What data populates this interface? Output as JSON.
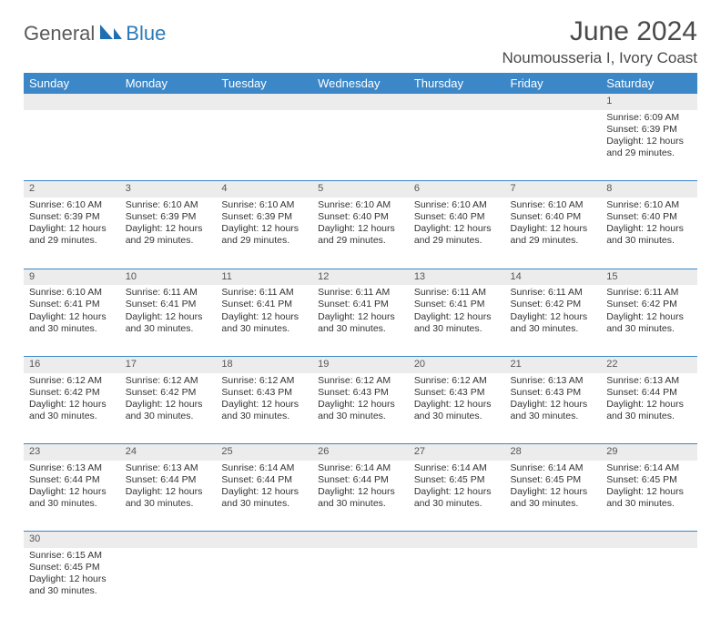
{
  "logo": {
    "word1": "General",
    "word2": "Blue"
  },
  "title": "June 2024",
  "location": "Noumousseria I, Ivory Coast",
  "weekdays": [
    "Sunday",
    "Monday",
    "Tuesday",
    "Wednesday",
    "Thursday",
    "Friday",
    "Saturday"
  ],
  "colors": {
    "header_bg": "#3b87c8",
    "rule": "#3b87c8",
    "daynum_bg": "#ececec"
  },
  "weeks": [
    [
      null,
      null,
      null,
      null,
      null,
      null,
      {
        "d": "1",
        "sr": "Sunrise: 6:09 AM",
        "ss": "Sunset: 6:39 PM",
        "dl1": "Daylight: 12 hours",
        "dl2": "and 29 minutes."
      }
    ],
    [
      {
        "d": "2",
        "sr": "Sunrise: 6:10 AM",
        "ss": "Sunset: 6:39 PM",
        "dl1": "Daylight: 12 hours",
        "dl2": "and 29 minutes."
      },
      {
        "d": "3",
        "sr": "Sunrise: 6:10 AM",
        "ss": "Sunset: 6:39 PM",
        "dl1": "Daylight: 12 hours",
        "dl2": "and 29 minutes."
      },
      {
        "d": "4",
        "sr": "Sunrise: 6:10 AM",
        "ss": "Sunset: 6:39 PM",
        "dl1": "Daylight: 12 hours",
        "dl2": "and 29 minutes."
      },
      {
        "d": "5",
        "sr": "Sunrise: 6:10 AM",
        "ss": "Sunset: 6:40 PM",
        "dl1": "Daylight: 12 hours",
        "dl2": "and 29 minutes."
      },
      {
        "d": "6",
        "sr": "Sunrise: 6:10 AM",
        "ss": "Sunset: 6:40 PM",
        "dl1": "Daylight: 12 hours",
        "dl2": "and 29 minutes."
      },
      {
        "d": "7",
        "sr": "Sunrise: 6:10 AM",
        "ss": "Sunset: 6:40 PM",
        "dl1": "Daylight: 12 hours",
        "dl2": "and 29 minutes."
      },
      {
        "d": "8",
        "sr": "Sunrise: 6:10 AM",
        "ss": "Sunset: 6:40 PM",
        "dl1": "Daylight: 12 hours",
        "dl2": "and 30 minutes."
      }
    ],
    [
      {
        "d": "9",
        "sr": "Sunrise: 6:10 AM",
        "ss": "Sunset: 6:41 PM",
        "dl1": "Daylight: 12 hours",
        "dl2": "and 30 minutes."
      },
      {
        "d": "10",
        "sr": "Sunrise: 6:11 AM",
        "ss": "Sunset: 6:41 PM",
        "dl1": "Daylight: 12 hours",
        "dl2": "and 30 minutes."
      },
      {
        "d": "11",
        "sr": "Sunrise: 6:11 AM",
        "ss": "Sunset: 6:41 PM",
        "dl1": "Daylight: 12 hours",
        "dl2": "and 30 minutes."
      },
      {
        "d": "12",
        "sr": "Sunrise: 6:11 AM",
        "ss": "Sunset: 6:41 PM",
        "dl1": "Daylight: 12 hours",
        "dl2": "and 30 minutes."
      },
      {
        "d": "13",
        "sr": "Sunrise: 6:11 AM",
        "ss": "Sunset: 6:41 PM",
        "dl1": "Daylight: 12 hours",
        "dl2": "and 30 minutes."
      },
      {
        "d": "14",
        "sr": "Sunrise: 6:11 AM",
        "ss": "Sunset: 6:42 PM",
        "dl1": "Daylight: 12 hours",
        "dl2": "and 30 minutes."
      },
      {
        "d": "15",
        "sr": "Sunrise: 6:11 AM",
        "ss": "Sunset: 6:42 PM",
        "dl1": "Daylight: 12 hours",
        "dl2": "and 30 minutes."
      }
    ],
    [
      {
        "d": "16",
        "sr": "Sunrise: 6:12 AM",
        "ss": "Sunset: 6:42 PM",
        "dl1": "Daylight: 12 hours",
        "dl2": "and 30 minutes."
      },
      {
        "d": "17",
        "sr": "Sunrise: 6:12 AM",
        "ss": "Sunset: 6:42 PM",
        "dl1": "Daylight: 12 hours",
        "dl2": "and 30 minutes."
      },
      {
        "d": "18",
        "sr": "Sunrise: 6:12 AM",
        "ss": "Sunset: 6:43 PM",
        "dl1": "Daylight: 12 hours",
        "dl2": "and 30 minutes."
      },
      {
        "d": "19",
        "sr": "Sunrise: 6:12 AM",
        "ss": "Sunset: 6:43 PM",
        "dl1": "Daylight: 12 hours",
        "dl2": "and 30 minutes."
      },
      {
        "d": "20",
        "sr": "Sunrise: 6:12 AM",
        "ss": "Sunset: 6:43 PM",
        "dl1": "Daylight: 12 hours",
        "dl2": "and 30 minutes."
      },
      {
        "d": "21",
        "sr": "Sunrise: 6:13 AM",
        "ss": "Sunset: 6:43 PM",
        "dl1": "Daylight: 12 hours",
        "dl2": "and 30 minutes."
      },
      {
        "d": "22",
        "sr": "Sunrise: 6:13 AM",
        "ss": "Sunset: 6:44 PM",
        "dl1": "Daylight: 12 hours",
        "dl2": "and 30 minutes."
      }
    ],
    [
      {
        "d": "23",
        "sr": "Sunrise: 6:13 AM",
        "ss": "Sunset: 6:44 PM",
        "dl1": "Daylight: 12 hours",
        "dl2": "and 30 minutes."
      },
      {
        "d": "24",
        "sr": "Sunrise: 6:13 AM",
        "ss": "Sunset: 6:44 PM",
        "dl1": "Daylight: 12 hours",
        "dl2": "and 30 minutes."
      },
      {
        "d": "25",
        "sr": "Sunrise: 6:14 AM",
        "ss": "Sunset: 6:44 PM",
        "dl1": "Daylight: 12 hours",
        "dl2": "and 30 minutes."
      },
      {
        "d": "26",
        "sr": "Sunrise: 6:14 AM",
        "ss": "Sunset: 6:44 PM",
        "dl1": "Daylight: 12 hours",
        "dl2": "and 30 minutes."
      },
      {
        "d": "27",
        "sr": "Sunrise: 6:14 AM",
        "ss": "Sunset: 6:45 PM",
        "dl1": "Daylight: 12 hours",
        "dl2": "and 30 minutes."
      },
      {
        "d": "28",
        "sr": "Sunrise: 6:14 AM",
        "ss": "Sunset: 6:45 PM",
        "dl1": "Daylight: 12 hours",
        "dl2": "and 30 minutes."
      },
      {
        "d": "29",
        "sr": "Sunrise: 6:14 AM",
        "ss": "Sunset: 6:45 PM",
        "dl1": "Daylight: 12 hours",
        "dl2": "and 30 minutes."
      }
    ],
    [
      {
        "d": "30",
        "sr": "Sunrise: 6:15 AM",
        "ss": "Sunset: 6:45 PM",
        "dl1": "Daylight: 12 hours",
        "dl2": "and 30 minutes."
      },
      null,
      null,
      null,
      null,
      null,
      null
    ]
  ]
}
